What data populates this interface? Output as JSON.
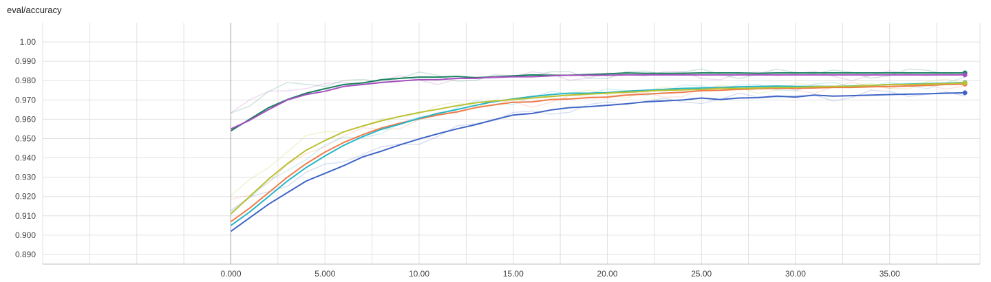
{
  "chart_data": {
    "type": "line",
    "title": "eval/accuracy",
    "xlabel": "",
    "ylabel": "",
    "xlim": [
      -10,
      39.8
    ],
    "ylim": [
      0.885,
      1.01
    ],
    "x_ticks": [
      0,
      5,
      10,
      15,
      20,
      25,
      30,
      35
    ],
    "x_tick_labels": [
      "0.000",
      "5.000",
      "10.00",
      "15.00",
      "20.00",
      "25.00",
      "30.00",
      "35.00"
    ],
    "y_ticks": [
      0.89,
      0.9,
      0.91,
      0.92,
      0.93,
      0.94,
      0.95,
      0.96,
      0.97,
      0.98,
      0.99,
      1.0
    ],
    "y_tick_labels": [
      "0.890",
      "0.900",
      "0.910",
      "0.920",
      "0.930",
      "0.940",
      "0.950",
      "0.960",
      "0.970",
      "0.980",
      "0.990",
      "1.00"
    ],
    "grid": true,
    "legend": "none",
    "x": [
      0,
      1,
      2,
      3,
      4,
      5,
      6,
      7,
      8,
      9,
      10,
      11,
      12,
      13,
      14,
      15,
      16,
      17,
      18,
      19,
      20,
      21,
      22,
      23,
      24,
      25,
      26,
      27,
      28,
      29,
      30,
      31,
      32,
      33,
      34,
      35,
      36,
      37,
      38,
      39
    ],
    "series": [
      {
        "color": "#3e64c5",
        "values": [
          0.902,
          0.909,
          0.916,
          0.922,
          0.928,
          0.932,
          0.936,
          0.9405,
          0.9435,
          0.9468,
          0.9498,
          0.9525,
          0.955,
          0.9572,
          0.9598,
          0.9622,
          0.963,
          0.9648,
          0.966,
          0.9665,
          0.9672,
          0.968,
          0.969,
          0.9695,
          0.97,
          0.971,
          0.9702,
          0.971,
          0.9712,
          0.972,
          0.9715,
          0.9725,
          0.972,
          0.9722,
          0.9725,
          0.9728,
          0.973,
          0.9732,
          0.9735,
          0.9737
        ]
      },
      {
        "color": "#f07a4a",
        "values": [
          0.907,
          0.914,
          0.922,
          0.93,
          0.937,
          0.943,
          0.948,
          0.952,
          0.9555,
          0.958,
          0.9602,
          0.9622,
          0.9638,
          0.966,
          0.9675,
          0.9688,
          0.969,
          0.9702,
          0.9705,
          0.9712,
          0.9715,
          0.9725,
          0.973,
          0.9735,
          0.974,
          0.9748,
          0.975,
          0.9755,
          0.9758,
          0.976,
          0.976,
          0.9762,
          0.9765,
          0.9765,
          0.9768,
          0.977,
          0.9772,
          0.9775,
          0.978,
          0.9782
        ]
      },
      {
        "color": "#26b5c6",
        "values": [
          0.905,
          0.912,
          0.92,
          0.928,
          0.935,
          0.941,
          0.9465,
          0.951,
          0.9548,
          0.9575,
          0.9605,
          0.963,
          0.965,
          0.9672,
          0.9692,
          0.9705,
          0.9718,
          0.9728,
          0.9735,
          0.9735,
          0.9738,
          0.9745,
          0.975,
          0.9755,
          0.976,
          0.9762,
          0.9765,
          0.9768,
          0.977,
          0.9772,
          0.977,
          0.977,
          0.977,
          0.9772,
          0.9775,
          0.978,
          0.9782,
          0.9785,
          0.9787,
          0.979
        ]
      },
      {
        "color": "#b9c131",
        "values": [
          0.911,
          0.92,
          0.929,
          0.937,
          0.944,
          0.949,
          0.9535,
          0.9565,
          0.9592,
          0.9615,
          0.9635,
          0.9652,
          0.967,
          0.9685,
          0.9695,
          0.9702,
          0.971,
          0.9718,
          0.9725,
          0.973,
          0.9735,
          0.974,
          0.9745,
          0.975,
          0.9752,
          0.9755,
          0.976,
          0.976,
          0.9762,
          0.9765,
          0.9765,
          0.9768,
          0.977,
          0.977,
          0.9775,
          0.978,
          0.978,
          0.9782,
          0.9785,
          0.9788
        ]
      },
      {
        "color": "#18815e",
        "values": [
          0.954,
          0.96,
          0.966,
          0.9702,
          0.9735,
          0.9758,
          0.978,
          0.9788,
          0.9805,
          0.9812,
          0.9818,
          0.9818,
          0.9822,
          0.9815,
          0.982,
          0.9825,
          0.983,
          0.9828,
          0.9828,
          0.9832,
          0.9835,
          0.984,
          0.9838,
          0.9838,
          0.9838,
          0.984,
          0.984,
          0.984,
          0.9838,
          0.984,
          0.984,
          0.984,
          0.984,
          0.984,
          0.984,
          0.984,
          0.984,
          0.984,
          0.984,
          0.984
        ]
      },
      {
        "color": "#a64fc0",
        "values": [
          0.955,
          0.9595,
          0.965,
          0.97,
          0.9728,
          0.9745,
          0.977,
          0.978,
          0.979,
          0.9798,
          0.9805,
          0.9805,
          0.9812,
          0.9812,
          0.9818,
          0.982,
          0.982,
          0.9825,
          0.9828,
          0.9828,
          0.9828,
          0.983,
          0.983,
          0.983,
          0.983,
          0.983,
          0.983,
          0.983,
          0.983,
          0.983,
          0.983,
          0.983,
          0.983,
          0.983,
          0.983,
          0.983,
          0.983,
          0.983,
          0.983,
          0.983
        ]
      }
    ]
  }
}
